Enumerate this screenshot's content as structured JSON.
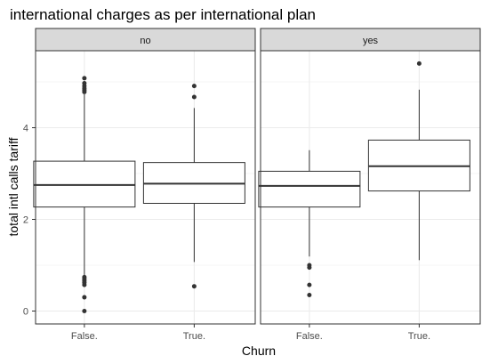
{
  "chart_data": {
    "type": "boxplot",
    "title": "international charges as per international plan",
    "xlabel": "Churn",
    "ylabel": "total intl calls  tariff",
    "ylim": [
      -0.25,
      5.3
    ],
    "yticks": [
      0,
      2,
      4
    ],
    "categories": [
      "False.",
      "True."
    ],
    "grid": true,
    "facets": [
      {
        "label": "no",
        "boxes": [
          {
            "category": "False.",
            "whisker_low": 0.78,
            "q1": 2.27,
            "median": 2.75,
            "q3": 3.27,
            "whisker_high": 4.73,
            "outliers": [
              5.08,
              4.97,
              4.91,
              4.86,
              4.82,
              4.78,
              0.74,
              0.7,
              0.66,
              0.62,
              0.57,
              0.3,
              0.0
            ]
          },
          {
            "category": "True.",
            "whisker_low": 1.07,
            "q1": 2.35,
            "median": 2.78,
            "q3": 3.24,
            "whisker_high": 4.43,
            "outliers": [
              4.91,
              4.67,
              0.54
            ]
          }
        ]
      },
      {
        "label": "yes",
        "boxes": [
          {
            "category": "False.",
            "whisker_low": 1.19,
            "q1": 2.27,
            "median": 2.73,
            "q3": 3.05,
            "whisker_high": 3.51,
            "outliers": [
              1.0,
              0.95,
              0.57,
              0.35
            ]
          },
          {
            "category": "True.",
            "whisker_low": 1.11,
            "q1": 2.62,
            "median": 3.16,
            "q3": 3.73,
            "whisker_high": 4.83,
            "outliers": [
              5.4
            ]
          }
        ]
      }
    ]
  },
  "colors": {
    "panel_background": "#ffffff",
    "panel_border": "#333333",
    "grid": "#ebebeb",
    "strip_fill": "#d9d9d9",
    "box_line": "#333333",
    "outlier": "#333333"
  }
}
